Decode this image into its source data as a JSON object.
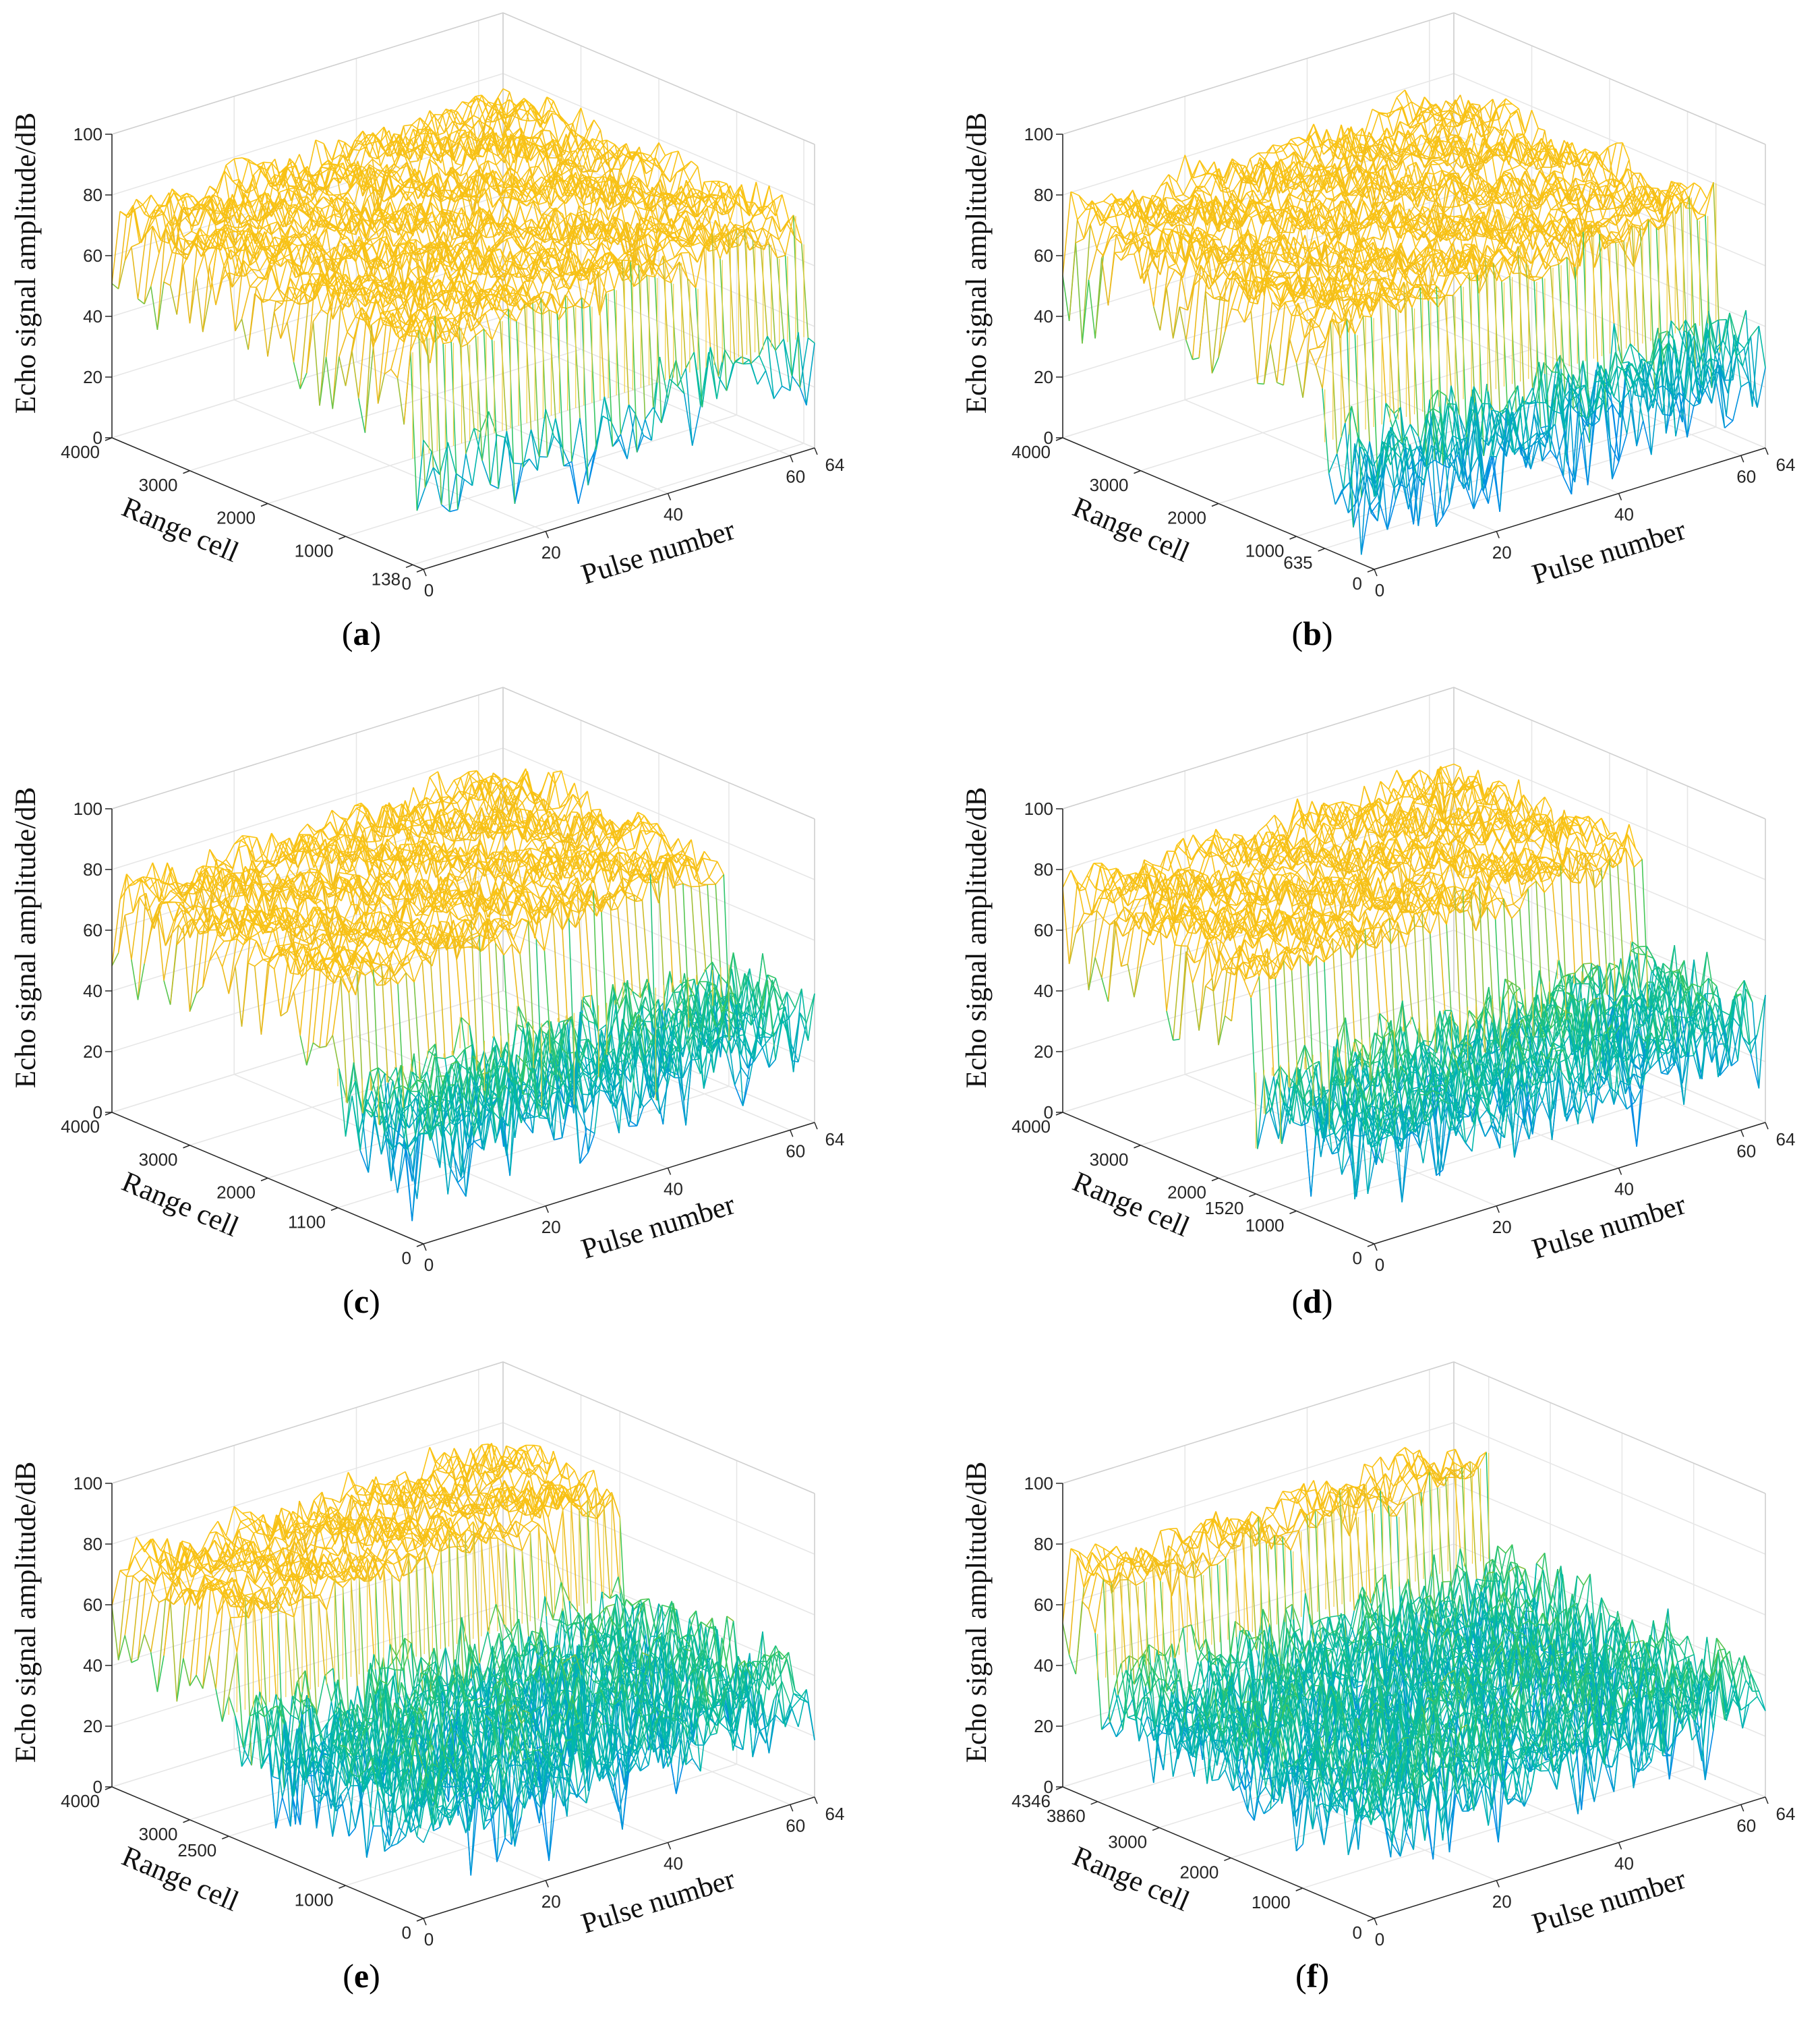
{
  "chart_data": [
    {
      "type": "mesh3d",
      "panel_label": "a",
      "zlabel": "Echo signal amplitude/dB",
      "xlabel": "Pulse number",
      "ylabel": "Range cell",
      "zlim": [
        0,
        100
      ],
      "xlim": [
        0,
        64
      ],
      "ylim": [
        0,
        4000
      ],
      "z_ticks": [
        "0",
        "20",
        "40",
        "60",
        "80",
        "100"
      ],
      "x_ticks": [
        "0",
        "20",
        "40",
        "60",
        "64"
      ],
      "y_ticks": [
        "0",
        "138",
        "1000",
        "2000",
        "3000",
        "4000"
      ],
      "y_tick_values": [
        0,
        138,
        1000,
        2000,
        3000,
        4000
      ],
      "boundary_range_cell": 138,
      "high_level_db": 72,
      "low_level_db": 30
    },
    {
      "type": "mesh3d",
      "panel_label": "b",
      "zlabel": "Echo signal amplitude/dB",
      "xlabel": "Pulse number",
      "ylabel": "Range cell",
      "zlim": [
        0,
        100
      ],
      "xlim": [
        0,
        64
      ],
      "ylim": [
        0,
        4000
      ],
      "z_ticks": [
        "0",
        "20",
        "40",
        "60",
        "80",
        "100"
      ],
      "x_ticks": [
        "0",
        "20",
        "40",
        "60",
        "64"
      ],
      "y_ticks": [
        "0",
        "635",
        "1000",
        "2000",
        "3000",
        "4000"
      ],
      "y_tick_values": [
        0,
        635,
        1000,
        2000,
        3000,
        4000
      ],
      "boundary_range_cell": 635,
      "high_level_db": 72,
      "low_level_db": 30
    },
    {
      "type": "mesh3d",
      "panel_label": "c",
      "zlabel": "Echo signal amplitude/dB",
      "xlabel": "Pulse number",
      "ylabel": "Range cell",
      "zlim": [
        0,
        100
      ],
      "xlim": [
        0,
        64
      ],
      "ylim": [
        0,
        4000
      ],
      "z_ticks": [
        "0",
        "20",
        "40",
        "60",
        "80",
        "100"
      ],
      "x_ticks": [
        "0",
        "20",
        "40",
        "60",
        "64"
      ],
      "y_ticks": [
        "0",
        "1100",
        "2000",
        "3000",
        "4000"
      ],
      "y_tick_values": [
        0,
        1100,
        2000,
        3000,
        4000
      ],
      "boundary_range_cell": 1100,
      "high_level_db": 72,
      "low_level_db": 35
    },
    {
      "type": "mesh3d",
      "panel_label": "d",
      "zlabel": "Echo signal amplitude/dB",
      "xlabel": "Pulse number",
      "ylabel": "Range cell",
      "zlim": [
        0,
        100
      ],
      "xlim": [
        0,
        64
      ],
      "ylim": [
        0,
        4000
      ],
      "z_ticks": [
        "0",
        "20",
        "40",
        "60",
        "80",
        "100"
      ],
      "x_ticks": [
        "0",
        "20",
        "40",
        "60",
        "64"
      ],
      "y_ticks": [
        "0",
        "1000",
        "1520",
        "2000",
        "3000",
        "4000"
      ],
      "y_tick_values": [
        0,
        1000,
        1520,
        2000,
        3000,
        4000
      ],
      "boundary_range_cell": 1520,
      "high_level_db": 72,
      "low_level_db": 35
    },
    {
      "type": "mesh3d",
      "panel_label": "e",
      "zlabel": "Echo signal amplitude/dB",
      "xlabel": "Pulse number",
      "ylabel": "Range cell",
      "zlim": [
        0,
        100
      ],
      "xlim": [
        0,
        64
      ],
      "ylim": [
        0,
        4000
      ],
      "z_ticks": [
        "0",
        "20",
        "40",
        "60",
        "80",
        "100"
      ],
      "x_ticks": [
        "0",
        "20",
        "40",
        "60",
        "64"
      ],
      "y_ticks": [
        "0",
        "1000",
        "2500",
        "3000",
        "4000"
      ],
      "y_tick_values": [
        0,
        1000,
        2500,
        3000,
        4000
      ],
      "boundary_range_cell": 2500,
      "high_level_db": 72,
      "low_level_db": 35
    },
    {
      "type": "mesh3d",
      "panel_label": "f",
      "zlabel": "Echo signal amplitude/dB",
      "xlabel": "Pulse number",
      "ylabel": "Range cell",
      "zlim": [
        0,
        100
      ],
      "xlim": [
        0,
        64
      ],
      "ylim": [
        0,
        4346
      ],
      "z_ticks": [
        "0",
        "20",
        "40",
        "60",
        "80",
        "100"
      ],
      "x_ticks": [
        "0",
        "20",
        "40",
        "60",
        "64"
      ],
      "y_ticks": [
        "0",
        "1000",
        "2000",
        "3000",
        "3860",
        "4346"
      ],
      "y_tick_values": [
        0,
        1000,
        2000,
        3000,
        3860,
        4346
      ],
      "boundary_range_cell": 3860,
      "high_level_db": 70,
      "low_level_db": 35
    }
  ]
}
